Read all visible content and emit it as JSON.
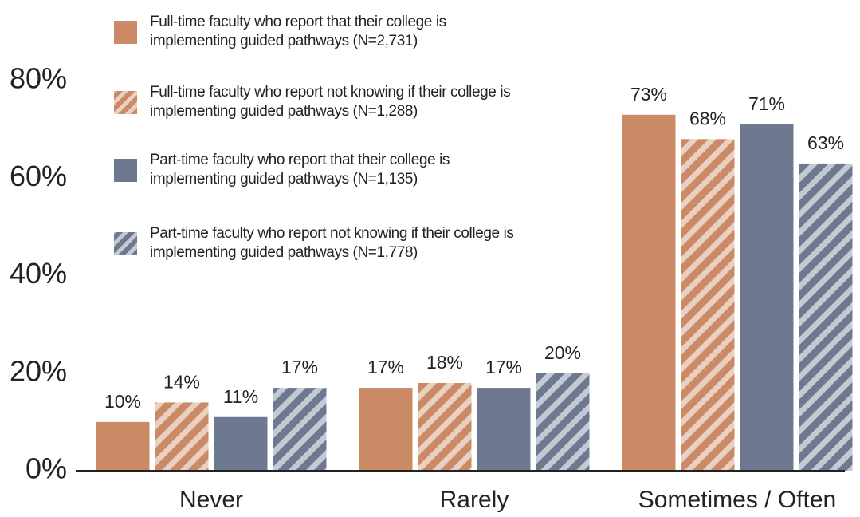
{
  "chart_data": {
    "type": "bar",
    "categories": [
      "Never",
      "Rarely",
      "Sometimes / Often"
    ],
    "series": [
      {
        "name": "Full-time faculty who report that their college is implementing guided pathways (N=2,731)",
        "color": "#c98a65",
        "hatch": false,
        "values": [
          10,
          17,
          73
        ],
        "value_labels": [
          "10%",
          "17%",
          "73%"
        ]
      },
      {
        "name": "Full-time faculty who report not knowing if their college is implementing guided pathways (N=1,288)",
        "color": "#c98a65",
        "hatch": true,
        "values": [
          14,
          18,
          68
        ],
        "value_labels": [
          "14%",
          "18%",
          "68%"
        ]
      },
      {
        "name": "Part-time faculty who report that their college is implementing guided pathways (N=1,135)",
        "color": "#6e7890",
        "hatch": false,
        "values": [
          11,
          17,
          71
        ],
        "value_labels": [
          "11%",
          "17%",
          "71%"
        ]
      },
      {
        "name": "Part-time faculty who report not knowing if their college is implementing guided pathways (N=1,778)",
        "color": "#6e7890",
        "hatch": true,
        "values": [
          17,
          20,
          63
        ],
        "value_labels": [
          "17%",
          "20%",
          "63%"
        ]
      }
    ],
    "ylim": [
      0,
      80
    ],
    "yticks": [
      {
        "value": 0,
        "label": "0%"
      },
      {
        "value": 20,
        "label": "20%"
      },
      {
        "value": 40,
        "label": "40%"
      },
      {
        "value": 60,
        "label": "60%"
      },
      {
        "value": 80,
        "label": "80%"
      }
    ],
    "grid": false
  }
}
